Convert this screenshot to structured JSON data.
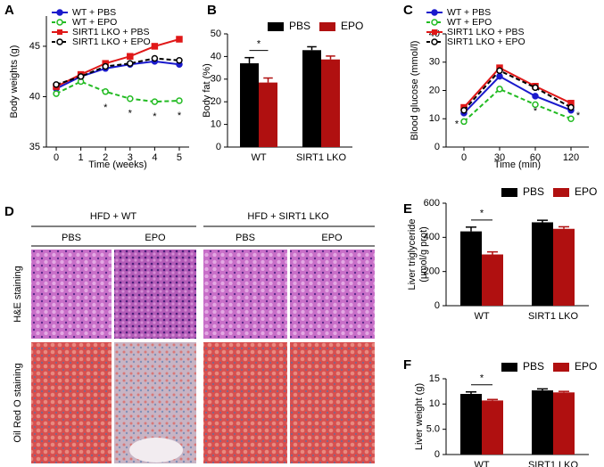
{
  "chart_data": [
    {
      "type": "line",
      "panel_label": "A",
      "x_label": "Time (weeks)",
      "y_label": "Body weights (g)",
      "x": [
        0,
        1,
        2,
        3,
        4,
        5
      ],
      "xlim": [
        -0.4,
        5.4
      ],
      "xticks": [
        0,
        1,
        2,
        3,
        4,
        5
      ],
      "ylim": [
        35,
        48
      ],
      "yticks": [
        35,
        40,
        45
      ],
      "legend": "upper left",
      "series": [
        {
          "name": "WT + PBS",
          "color": "#1a1acc",
          "marker": "circle",
          "open": false,
          "dashed": false,
          "values": [
            40.8,
            42.0,
            42.8,
            43.2,
            43.5,
            43.2
          ]
        },
        {
          "name": "WT + EPO",
          "color": "#22bb22",
          "marker": "circle",
          "open": true,
          "dashed": true,
          "values": [
            40.3,
            41.5,
            40.5,
            39.8,
            39.5,
            39.6
          ]
        },
        {
          "name": "SIRT1 LKO + PBS",
          "color": "#e01818",
          "marker": "square",
          "open": false,
          "dashed": false,
          "values": [
            41.0,
            42.2,
            43.3,
            44.0,
            45.0,
            45.7
          ]
        },
        {
          "name": "SIRT1 LKO + EPO",
          "color": "#000000",
          "marker": "circle",
          "open": true,
          "dashed": true,
          "values": [
            41.2,
            42.0,
            43.0,
            43.3,
            43.8,
            43.6
          ]
        }
      ],
      "annotations": [
        {
          "text": "*",
          "x": 2,
          "y": 38.9
        },
        {
          "text": "*",
          "x": 3,
          "y": 38.3
        },
        {
          "text": "*",
          "x": 4,
          "y": 38.0
        },
        {
          "text": "*",
          "x": 5,
          "y": 38.1
        }
      ]
    },
    {
      "type": "bar",
      "panel_label": "B",
      "y_label": "Body fat (%)",
      "categories": [
        "WT",
        "SIRT1 LKO"
      ],
      "ylim": [
        0,
        50
      ],
      "yticks": [
        0,
        10,
        20,
        30,
        40,
        50
      ],
      "legend": "upper right",
      "series": [
        {
          "name": "PBS",
          "color": "#000000",
          "values": [
            37,
            42.8
          ],
          "errors": [
            2.5,
            1.5
          ]
        },
        {
          "name": "EPO",
          "color": "#b01010",
          "values": [
            28.5,
            38.7
          ],
          "errors": [
            2.0,
            1.5
          ]
        }
      ],
      "significance": [
        {
          "category": 0,
          "text": "*"
        }
      ]
    },
    {
      "type": "line",
      "panel_label": "C",
      "x_label": "Time (min)",
      "y_label": "Blood glucose (mmol/l)",
      "categories": [
        "0",
        "30",
        "60",
        "120"
      ],
      "ylim": [
        0,
        40
      ],
      "yticks": [
        0,
        10,
        20,
        30,
        40
      ],
      "legend": "upper left",
      "series": [
        {
          "name": "WT + PBS",
          "color": "#1a1acc",
          "marker": "circle",
          "open": false,
          "dashed": false,
          "values": [
            12,
            25,
            18,
            13
          ]
        },
        {
          "name": "WT + EPO",
          "color": "#22bb22",
          "marker": "circle",
          "open": true,
          "dashed": true,
          "values": [
            9,
            20.5,
            15,
            10
          ]
        },
        {
          "name": "SIRT1 LKO + PBS",
          "color": "#e01818",
          "marker": "square",
          "open": false,
          "dashed": false,
          "values": [
            14,
            28,
            21.5,
            15.5
          ]
        },
        {
          "name": "SIRT1 LKO + EPO",
          "color": "#000000",
          "marker": "circle",
          "open": true,
          "dashed": true,
          "values": [
            13,
            27,
            21,
            14
          ]
        }
      ],
      "annotations": [
        {
          "text": "*",
          "category": 0,
          "y": 8
        },
        {
          "text": "*",
          "category": 2,
          "y": 12.5
        },
        {
          "text": "*",
          "category": 3,
          "y": 11
        }
      ]
    },
    {
      "type": "bar",
      "panel_label": "E",
      "y_label": [
        "Liver triglyceride",
        "(μmol/g prot)"
      ],
      "categories": [
        "WT",
        "SIRT1 LKO"
      ],
      "ylim": [
        0,
        600
      ],
      "yticks": [
        0,
        200,
        400,
        600
      ],
      "legend": "upper right",
      "series": [
        {
          "name": "PBS",
          "color": "#000000",
          "values": [
            435,
            488
          ],
          "errors": [
            25,
            12
          ]
        },
        {
          "name": "EPO",
          "color": "#b01010",
          "values": [
            300,
            450
          ],
          "errors": [
            15,
            12
          ]
        }
      ],
      "significance": [
        {
          "category": 0,
          "text": "*"
        }
      ]
    },
    {
      "type": "bar",
      "panel_label": "F",
      "y_label": "Liver weight (g)",
      "categories": [
        "WT",
        "SIRT1 LKO"
      ],
      "ylim": [
        0,
        15
      ],
      "yticks": [
        0,
        {
          "value": 5,
          "label": "5.0"
        },
        10,
        15
      ],
      "legend": "upper right",
      "series": [
        {
          "name": "PBS",
          "color": "#000000",
          "values": [
            12.0,
            12.7
          ],
          "errors": [
            0.4,
            0.3
          ]
        },
        {
          "name": "EPO",
          "color": "#b01010",
          "values": [
            10.7,
            12.3
          ],
          "errors": [
            0.2,
            0.2
          ]
        }
      ],
      "significance": [
        {
          "category": 0,
          "text": "*"
        }
      ]
    }
  ],
  "panel_d": {
    "label": "D",
    "groups": [
      "HFD + WT",
      "HFD + SIRT1 LKO"
    ],
    "columns": [
      "PBS",
      "EPO",
      "PBS",
      "EPO"
    ],
    "rows": [
      "H&E staining",
      "Oil Red O staining"
    ]
  }
}
